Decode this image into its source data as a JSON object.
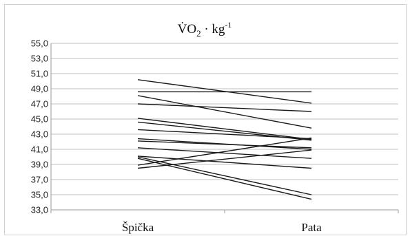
{
  "chart_data": {
    "type": "line",
    "title_base": "V̇O",
    "title_sub": "2",
    "title_rest": " · kg",
    "title_sup": "-1",
    "categories": [
      "Špička",
      "Pata"
    ],
    "ylim": [
      33.0,
      55.0
    ],
    "yticks": [
      "33,0",
      "35,0",
      "37,0",
      "39,0",
      "41,0",
      "43,0",
      "45,0",
      "47,0",
      "49,0",
      "51,0",
      "53,0",
      "55,0"
    ],
    "grid": true,
    "legend": "none",
    "line_color": "#1a1a1a",
    "grid_color": "#bfbfbf",
    "series": [
      {
        "values": [
          50.2,
          47.1
        ]
      },
      {
        "values": [
          48.6,
          48.6
        ]
      },
      {
        "values": [
          48.1,
          43.8
        ]
      },
      {
        "values": [
          47.0,
          46.0
        ]
      },
      {
        "values": [
          45.1,
          42.3
        ]
      },
      {
        "values": [
          44.6,
          42.2
        ]
      },
      {
        "values": [
          43.6,
          42.4
        ]
      },
      {
        "values": [
          42.4,
          41.0
        ]
      },
      {
        "values": [
          42.1,
          41.2
        ]
      },
      {
        "values": [
          41.2,
          39.8
        ]
      },
      {
        "values": [
          40.1,
          38.5
        ]
      },
      {
        "values": [
          40.0,
          35.0
        ]
      },
      {
        "values": [
          39.8,
          34.4
        ]
      },
      {
        "values": [
          38.9,
          42.5
        ]
      },
      {
        "values": [
          38.5,
          40.9
        ]
      }
    ]
  }
}
